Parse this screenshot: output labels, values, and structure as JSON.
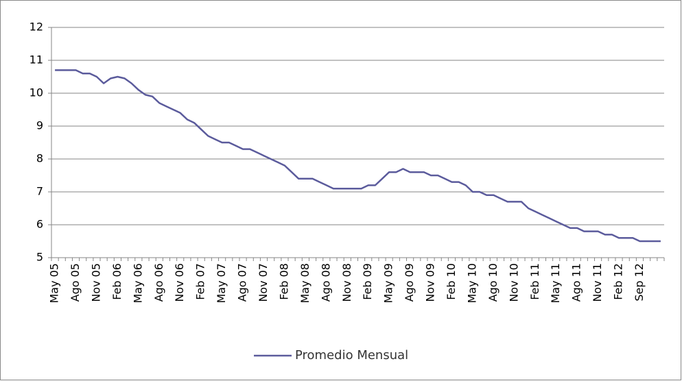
{
  "chart_data": {
    "type": "line",
    "categories": [
      "May 05",
      null,
      null,
      "Ago 05",
      null,
      null,
      "Nov 05",
      null,
      null,
      "Feb 06",
      null,
      null,
      "May 06",
      null,
      null,
      "Ago 06",
      null,
      null,
      "Nov 06",
      null,
      null,
      "Feb 07",
      null,
      null,
      "May 07",
      null,
      null,
      "Ago 07",
      null,
      null,
      "Nov 07",
      null,
      null,
      "Feb 08",
      null,
      null,
      "May 08",
      null,
      null,
      "Ago 08",
      null,
      null,
      "Nov 08",
      null,
      null,
      "Feb 09",
      null,
      null,
      "May 09",
      null,
      null,
      "Ago 09",
      null,
      null,
      "Nov 09",
      null,
      null,
      "Feb 10",
      null,
      null,
      "May 10",
      null,
      null,
      "Ago 10",
      null,
      null,
      "Nov 10",
      null,
      null,
      "Feb 11",
      null,
      null,
      "May 11",
      null,
      null,
      "Ago 11",
      null,
      null,
      "Nov 11",
      null,
      null,
      "Feb 12",
      null,
      null,
      "Sep 12",
      null,
      null,
      null
    ],
    "series": [
      {
        "name": "Promedio Mensual",
        "color": "#5b5b9c",
        "values": [
          10.7,
          10.7,
          10.7,
          10.7,
          10.6,
          10.6,
          10.5,
          10.3,
          10.45,
          10.5,
          10.45,
          10.3,
          10.1,
          9.95,
          9.9,
          9.7,
          9.6,
          9.5,
          9.4,
          9.2,
          9.1,
          8.9,
          8.7,
          8.6,
          8.5,
          8.5,
          8.4,
          8.3,
          8.3,
          8.2,
          8.1,
          8.0,
          7.9,
          7.8,
          7.6,
          7.4,
          7.4,
          7.4,
          7.3,
          7.2,
          7.1,
          7.1,
          7.1,
          7.1,
          7.1,
          7.2,
          7.2,
          7.4,
          7.6,
          7.6,
          7.7,
          7.6,
          7.6,
          7.6,
          7.5,
          7.5,
          7.4,
          7.3,
          7.3,
          7.2,
          7.0,
          7.0,
          6.9,
          6.9,
          6.8,
          6.7,
          6.7,
          6.7,
          6.5,
          6.4,
          6.3,
          6.2,
          6.1,
          6.0,
          5.9,
          5.9,
          5.8,
          5.8,
          5.8,
          5.7,
          5.7,
          5.6,
          5.6,
          5.6,
          5.5,
          5.5,
          5.5,
          5.5
        ]
      }
    ],
    "ylim": [
      5,
      12
    ],
    "yticks": [
      5,
      6,
      7,
      8,
      9,
      10,
      11,
      12
    ],
    "grid": true,
    "legend": "bottom"
  }
}
